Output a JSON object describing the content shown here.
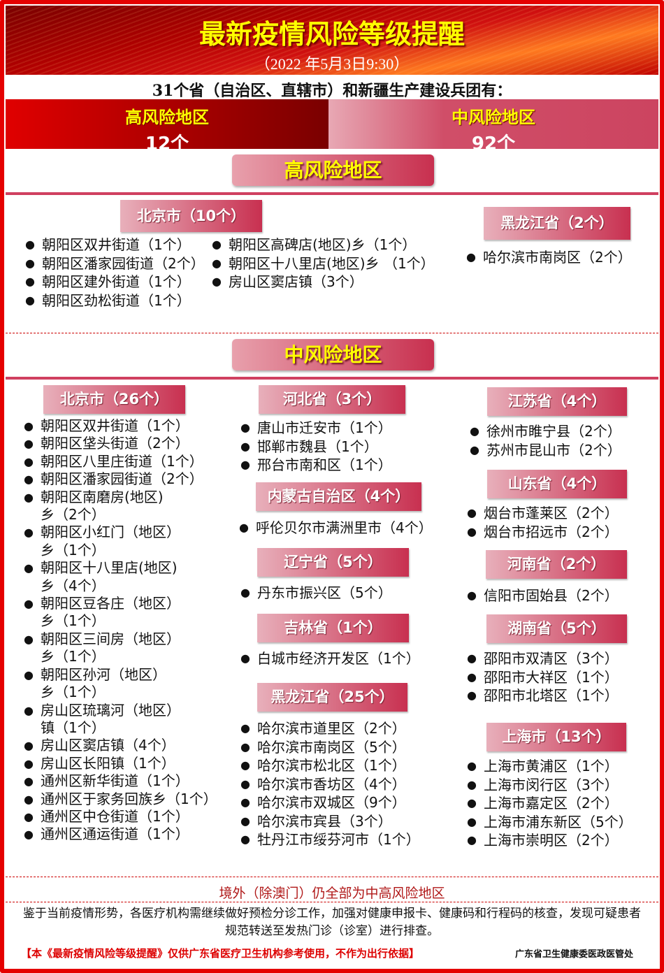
{
  "header": {
    "title": "最新疫情风险等级提醒",
    "date": "（2022 年5月3日9:30）",
    "intro": "31个省（自治区、直辖市）和新疆生产建设兵团有："
  },
  "summary": {
    "high_label": "高风险地区",
    "high_count": "12个",
    "mid_label": "中风险地区",
    "mid_count": "92个"
  },
  "colors": {
    "frame": "#e50000",
    "yellow": "#ffff00",
    "pink": "#c8304f"
  },
  "high": {
    "section_title": "高风险地区",
    "groups": [
      {
        "header": "北京市（10个）",
        "items": [
          "朝阳区双井街道（1个）",
          "朝阳区潘家园街道（2个）",
          "朝阳区建外街道（1个）",
          "朝阳区劲松街道（1个）"
        ],
        "items2": [
          "朝阳区高碑店(地区)乡（1个）",
          "朝阳区十八里店(地区)乡 （1个）",
          "房山区窦店镇（3个）"
        ]
      },
      {
        "header": "黑龙江省（2个）",
        "items": [
          "哈尔滨市南岗区（2个）"
        ]
      }
    ]
  },
  "mid": {
    "section_title": "中风险地区",
    "groups": [
      {
        "header": "北京市（26个）",
        "items": [
          "朝阳区双井街道（1个）",
          "朝阳区垡头街道（2个）",
          "朝阳区八里庄街道（1个）",
          "朝阳区潘家园街道（2个）",
          "朝阳区南磨房(地区)\n乡（2个）",
          "朝阳区小红门（地区）\n乡（1个）",
          "朝阳区十八里店(地区)\n乡（4个）",
          "朝阳区豆各庄（地区）\n乡（1个）",
          "朝阳区三间房（地区）\n乡（1个）",
          "朝阳区孙河（地区）\n乡（1个）",
          "房山区琉璃河（地区）\n镇（1个）",
          "房山区窦店镇（4个）",
          "房山区长阳镇（1个）",
          "通州区新华街道（1个）",
          "通州区于家务回族乡（1个）",
          "通州区中仓街道（1个）",
          "通州区通运街道（1个）"
        ]
      },
      {
        "header": "河北省（3个）",
        "items": [
          "唐山市迁安市（1个）",
          "邯郸市魏县（1个）",
          "邢台市南和区（1个）"
        ]
      },
      {
        "header": "内蒙古自治区（4个）",
        "items": [
          "呼伦贝尔市满洲里市（4个）"
        ]
      },
      {
        "header": "辽宁省（5个）",
        "items": [
          "丹东市振兴区（5个）"
        ]
      },
      {
        "header": "吉林省（1个）",
        "items": [
          "白城市经济开发区（1个）"
        ]
      },
      {
        "header": "黑龙江省（25个）",
        "items": [
          "哈尔滨市道里区（2个）",
          "哈尔滨市南岗区（5个）",
          "哈尔滨市松北区（1个）",
          "哈尔滨市香坊区（4个）",
          "哈尔滨市双城区（9个）",
          "哈尔滨市宾县（3个）",
          "牡丹江市绥芬河市（1个）"
        ]
      },
      {
        "header": "江苏省（4个）",
        "items": [
          "徐州市睢宁县（2个）",
          "苏州市昆山市（2个）"
        ]
      },
      {
        "header": "山东省（4个）",
        "items": [
          "烟台市蓬莱区（2个）",
          "烟台市招远市（2个）"
        ]
      },
      {
        "header": "河南省（2个）",
        "items": [
          "信阳市固始县（2个）"
        ]
      },
      {
        "header": "湖南省（5个）",
        "items": [
          "邵阳市双清区（3个）",
          "邵阳市大祥区（1个）",
          "邵阳市北塔区（1个）"
        ]
      },
      {
        "header": "上海市（13个）",
        "items": [
          "上海市黄浦区（1个）",
          "上海市闵行区（3个）",
          "上海市嘉定区（2个）",
          "上海市浦东新区（5个）",
          "上海市崇明区（2个）"
        ]
      }
    ]
  },
  "footer": {
    "overseas": "境外（除澳门）仍全部为中高风险地区",
    "notice": "鉴于当前疫情形势，各医疗机构需继续做好预检分诊工作，加强对健康申报卡、健康码和行程码的核查，发现可疑患者规范转送至发热门诊（诊室）进行排查。",
    "disclaimer": "【本《最新疫情风险等级提醒》仅供广东省医疗卫生机构参考使用，不作为出行依据】",
    "org": "广东省卫生健康委医政医管处"
  }
}
